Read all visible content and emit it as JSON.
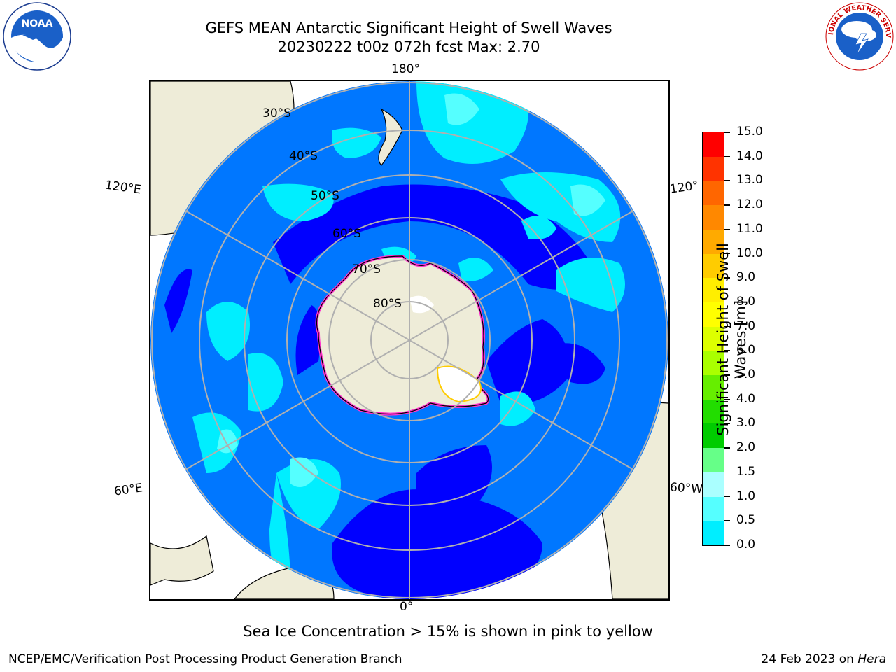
{
  "title_line1": "GEFS MEAN Antarctic Significant Height of Swell Waves",
  "title_line2": "20230222 t00z 072h fcst   Max: 2.70",
  "map": {
    "lon_labels": {
      "top": "180°",
      "bottom": "0°",
      "upper_left": "120°E",
      "upper_right": "120°",
      "lower_left": "60°E",
      "lower_right": "60°W"
    },
    "lat_labels": [
      "30°S",
      "40°S",
      "50°S",
      "60°S",
      "70°S",
      "80°S"
    ]
  },
  "colorbar": {
    "title": "Significant Height of Swell Waves [m]",
    "ticks": [
      "15.0",
      "14.0",
      "13.0",
      "12.0",
      "11.0",
      "10.0",
      "9.0",
      "8.0",
      "7.0",
      "6.0",
      "5.0",
      "4.0",
      "3.0",
      "2.0",
      "1.5",
      "1.0",
      "0.5",
      "0.0"
    ],
    "colors": [
      "#ff0000",
      "#ff3300",
      "#ff6600",
      "#ff8800",
      "#ffaa00",
      "#ffcc00",
      "#ffee00",
      "#ffff00",
      "#ddff00",
      "#aaff00",
      "#66ee00",
      "#22dd00",
      "#00cc00",
      "#66ff88",
      "#aaffff",
      "#55ffff",
      "#00eeff",
      "#0088ff",
      "#0000ff"
    ]
  },
  "note": "Sea Ice Concentration > 15% is shown in pink to yellow",
  "footer": {
    "left": "NCEP/EMC/Verification Post Processing Product Generation Branch",
    "right_date": "24 Feb 2023 on",
    "right_host": "Hera"
  },
  "colors": {
    "land": "#eeecd8",
    "ocean_low": "#0000ff",
    "ocean_mid": "#0077ff",
    "ocean_high": "#00eeff",
    "ocean_max": "#55ffff",
    "ice_edge": "#ff33cc",
    "grid": "#b0b0b0"
  },
  "logos": {
    "left": "NOAA",
    "right": "NATIONAL WEATHER SERVICE"
  }
}
